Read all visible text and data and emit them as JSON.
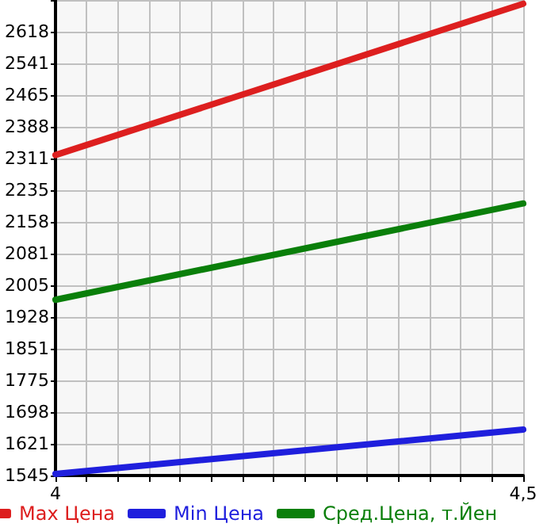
{
  "chart_data": {
    "type": "line",
    "x": [
      4,
      4.5
    ],
    "series": [
      {
        "name": "Max Цена",
        "color": "#dd1f1f",
        "values": [
          2320,
          2686
        ]
      },
      {
        "name": "Min Цена",
        "color": "#1f1fdd",
        "values": [
          1549,
          1656
        ]
      },
      {
        "name": "Сред.Цена, т.Йен",
        "color": "#0a7f0a",
        "values": [
          1970,
          2203
        ]
      }
    ],
    "xlim": [
      4,
      4.5
    ],
    "xticks": [
      4,
      {
        "value": 4.0333,
        "label": null
      },
      {
        "value": 4.0667,
        "label": null
      },
      {
        "value": 4.1,
        "label": null
      },
      {
        "value": 4.1333,
        "label": null
      },
      {
        "value": 4.1667,
        "label": null
      },
      {
        "value": 4.2,
        "label": null
      },
      {
        "value": 4.2333,
        "label": null
      },
      {
        "value": 4.2667,
        "label": null
      },
      {
        "value": 4.3,
        "label": null
      },
      {
        "value": 4.3333,
        "label": null
      },
      {
        "value": 4.3667,
        "label": null
      },
      {
        "value": 4.4,
        "label": null
      },
      {
        "value": 4.4333,
        "label": null
      },
      {
        "value": 4.4667,
        "label": null
      },
      {
        "value": 4.5,
        "label": "4,5"
      }
    ],
    "ylim": [
      1545,
      2695
    ],
    "yticks": [
      1545,
      1621,
      1698,
      1775,
      1851,
      1928,
      2005,
      2081,
      2158,
      2235,
      2311,
      2388,
      2465,
      2541,
      2618,
      {
        "value": 2695,
        "label": null
      }
    ],
    "grid": true,
    "legend": "bottom",
    "marker": "none",
    "line_style": "solid"
  }
}
